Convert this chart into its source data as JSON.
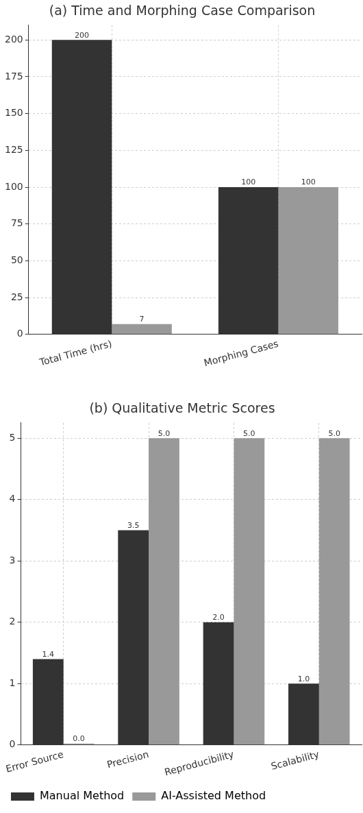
{
  "chart_data": [
    {
      "type": "bar",
      "title": "(a) Time and Morphing Case Comparison",
      "categories": [
        "Total Time (hrs)",
        "Morphing Cases"
      ],
      "series": [
        {
          "color": "#333333",
          "values": [
            200,
            100
          ]
        },
        {
          "color": "#999999",
          "values": [
            7,
            100
          ]
        }
      ],
      "ylim": [
        0,
        210
      ],
      "yticks": [
        0,
        25,
        50,
        75,
        100,
        125,
        150,
        175,
        200
      ],
      "grid": true,
      "data_labels": true
    },
    {
      "type": "bar",
      "title": "(b) Qualitative Metric Scores",
      "categories": [
        "Error Source",
        "Precision",
        "Reproducibility",
        "Scalability"
      ],
      "series": [
        {
          "name": "Manual Method",
          "color": "#333333",
          "values": [
            1.4,
            3.5,
            2,
            1
          ],
          "value_labels": [
            "1.4",
            "3.5",
            "2.0",
            "1.0"
          ]
        },
        {
          "name": "AI-Assisted Method",
          "color": "#999999",
          "values": [
            0,
            5,
            5,
            5
          ],
          "value_labels": [
            "0.0",
            "5.0",
            "5.0",
            "5.0"
          ]
        }
      ],
      "ylim": [
        0,
        5.25
      ],
      "yticks": [
        0,
        1,
        2,
        3,
        4,
        5
      ],
      "grid": true,
      "legend": "bottom left"
    }
  ]
}
